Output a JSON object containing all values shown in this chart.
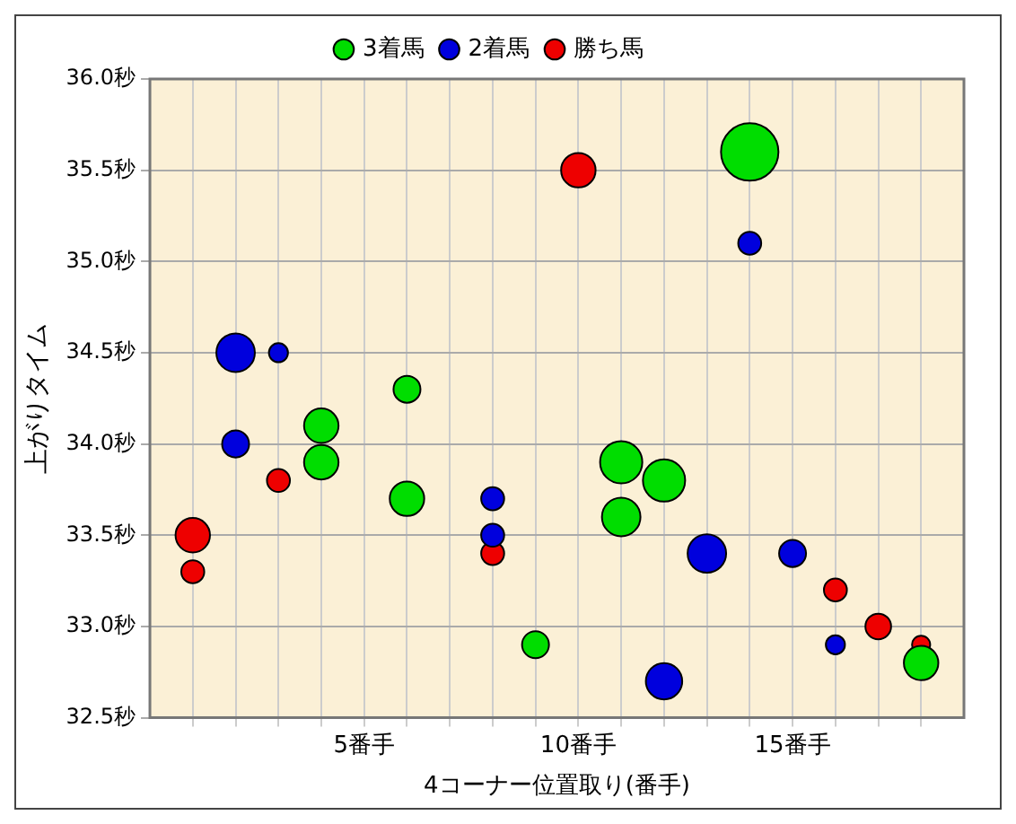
{
  "chart_data": {
    "type": "bubble",
    "xlabel": "4コーナー位置取り(番手)",
    "ylabel": "上がりタイム",
    "xlim": [
      0,
      19
    ],
    "xticks": [
      {
        "value": 1,
        "label": null
      },
      {
        "value": 2,
        "label": null
      },
      {
        "value": 3,
        "label": null
      },
      {
        "value": 4,
        "label": null
      },
      {
        "value": 5,
        "label": "5番手"
      },
      {
        "value": 6,
        "label": null
      },
      {
        "value": 7,
        "label": null
      },
      {
        "value": 8,
        "label": null
      },
      {
        "value": 9,
        "label": null
      },
      {
        "value": 10,
        "label": "10番手"
      },
      {
        "value": 11,
        "label": null
      },
      {
        "value": 12,
        "label": null
      },
      {
        "value": 13,
        "label": null
      },
      {
        "value": 14,
        "label": null
      },
      {
        "value": 15,
        "label": "15番手"
      },
      {
        "value": 16,
        "label": null
      },
      {
        "value": 17,
        "label": null
      },
      {
        "value": 18,
        "label": null
      }
    ],
    "ylim": [
      32.5,
      36.0
    ],
    "yticks": [
      {
        "value": 32.5,
        "label": "32.5秒"
      },
      {
        "value": 33.0,
        "label": "33.0秒"
      },
      {
        "value": 33.5,
        "label": "33.5秒"
      },
      {
        "value": 34.0,
        "label": "34.0秒"
      },
      {
        "value": 34.5,
        "label": "34.5秒"
      },
      {
        "value": 35.0,
        "label": "35.0秒"
      },
      {
        "value": 35.5,
        "label": "35.5秒"
      },
      {
        "value": 36.0,
        "label": "36.0秒"
      }
    ],
    "grid": true,
    "legend": "top",
    "series": [
      {
        "name": "3着馬",
        "color": "#00dd00",
        "x": [
          14,
          4,
          4,
          6,
          6,
          11,
          11,
          12,
          9,
          18
        ],
        "values": [
          35.6,
          34.1,
          33.9,
          34.3,
          33.7,
          33.9,
          33.6,
          33.8,
          32.9,
          32.8
        ],
        "sizes": [
          1,
          0.36,
          0.36,
          0.22,
          0.36,
          0.54,
          0.45,
          0.54,
          0.22,
          0.36
        ]
      },
      {
        "name": "2着馬",
        "color": "#0000dd",
        "x": [
          2,
          3,
          2,
          8,
          8,
          13,
          15,
          14,
          12,
          16
        ],
        "values": [
          34.5,
          34.5,
          34.0,
          33.7,
          33.5,
          33.4,
          33.4,
          35.1,
          32.7,
          32.9
        ],
        "sizes": [
          0.45,
          0.11,
          0.22,
          0.16,
          0.16,
          0.45,
          0.22,
          0.16,
          0.4,
          0.11
        ]
      },
      {
        "name": "勝ち馬",
        "color": "#ee0000",
        "x": [
          1,
          1,
          3,
          8,
          10,
          16,
          17,
          16,
          18
        ],
        "values": [
          33.5,
          33.3,
          33.8,
          33.4,
          35.5,
          33.2,
          33.0,
          32.9,
          32.9
        ],
        "sizes": [
          0.36,
          0.16,
          0.16,
          0.16,
          0.36,
          0.16,
          0.2,
          0.1,
          0.1
        ]
      }
    ]
  }
}
